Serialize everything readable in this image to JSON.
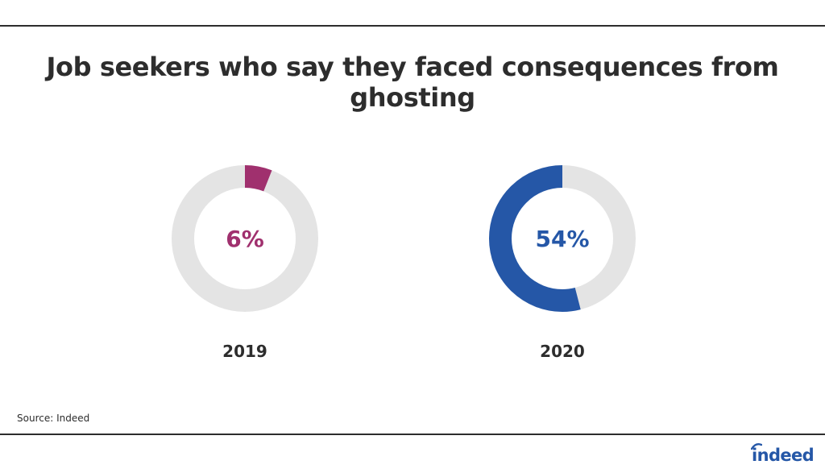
{
  "title": "Job seekers who say they faced consequences from ghosting",
  "source": "Source: Indeed",
  "logo": "indeed",
  "colors": {
    "track": "#e4e4e4",
    "accent_2019": "#a0306e",
    "accent_2020": "#2557a7",
    "text": "#2d2d2d"
  },
  "chart_data": {
    "type": "pie",
    "title": "Job seekers who say they faced consequences from ghosting",
    "categories": [
      "2019",
      "2020"
    ],
    "values": [
      6,
      54
    ],
    "unit": "%",
    "labels": [
      "6%",
      "54%"
    ]
  }
}
